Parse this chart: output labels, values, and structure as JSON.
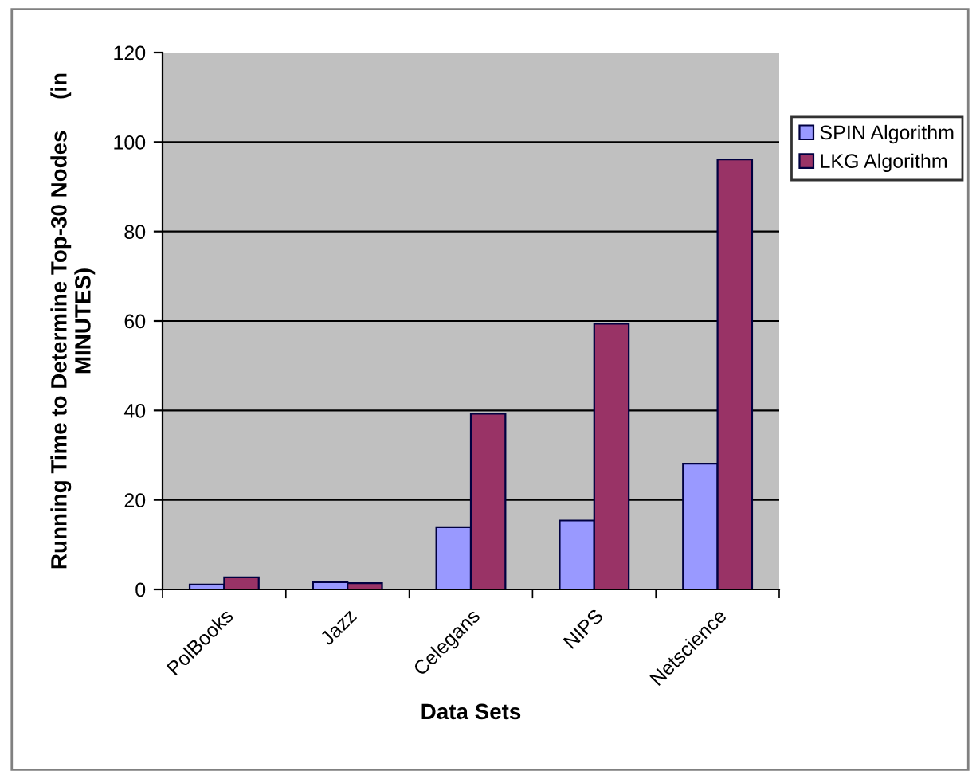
{
  "chart_data": {
    "type": "bar",
    "xlabel": "Data Sets",
    "ylabel": "Running Time to Determine Top-30 Nodes     (in\nMINUTES)",
    "categories": [
      "PolBooks",
      "Jazz",
      "Celegans",
      "NIPS",
      "Netscience"
    ],
    "series": [
      {
        "name": "SPIN Algorithm",
        "color": "#9999ff",
        "values": [
          1.1,
          1.6,
          13.9,
          15.4,
          28.1
        ]
      },
      {
        "name": "LKG Algorithm",
        "color": "#993366",
        "values": [
          2.7,
          1.4,
          39.3,
          59.4,
          96.1
        ]
      }
    ],
    "ylim": [
      0,
      120
    ],
    "yticks": [
      0,
      20,
      40,
      60,
      80,
      100,
      120
    ],
    "grid": "y",
    "legend": "right"
  }
}
